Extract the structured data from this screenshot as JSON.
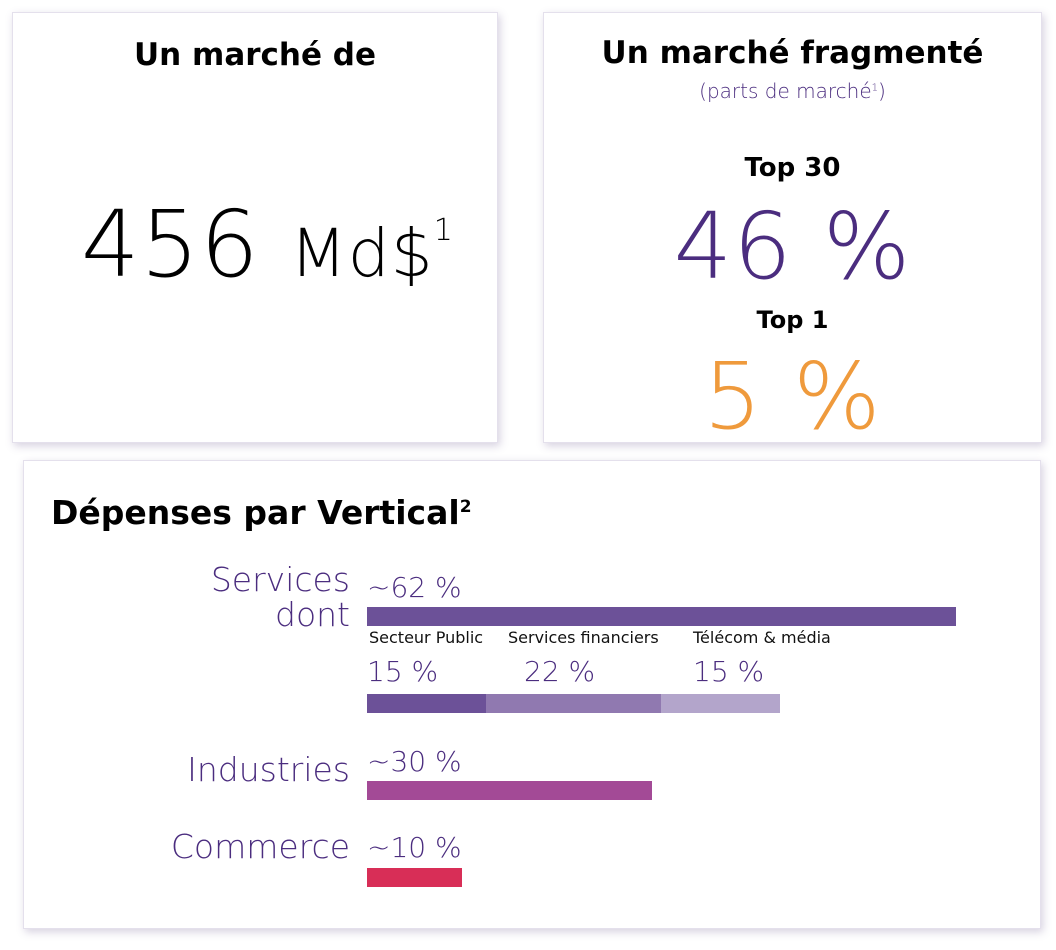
{
  "market_size": {
    "title": "Un marché de",
    "value": "456",
    "unit": "Md$",
    "footnote": "1"
  },
  "fragmented": {
    "title": "Un marché fragmenté",
    "subtitle": "(parts de marché",
    "subtitle_footnote": "1",
    "subtitle_close": ")",
    "top30_label": "Top 30",
    "top30_value": "46 %",
    "top1_label": "Top 1",
    "top1_value": "5 %"
  },
  "colors": {
    "purple_text": "#4b2d7f",
    "orange": "#ef9a3c"
  },
  "chart_data": {
    "type": "bar",
    "title": "Dépenses par Vertical",
    "title_footnote": "2",
    "categories": [
      "Services dont",
      "Industries",
      "Commerce"
    ],
    "category_lines": [
      [
        "Services",
        "dont"
      ],
      [
        "Industries"
      ],
      [
        "Commerce"
      ]
    ],
    "values": [
      62,
      30,
      10
    ],
    "value_labels": [
      "~62 %",
      "~30 %",
      "~10 %"
    ],
    "colors": [
      "#6c5198",
      "#a34a96",
      "#d82e57"
    ],
    "services_breakdown": [
      {
        "name": "Secteur Public",
        "value": 15,
        "label": "15 %",
        "color": "#6c5198"
      },
      {
        "name": "Services financiers",
        "value": 22,
        "label": "22 %",
        "color": "#9079b0"
      },
      {
        "name": "Télécom & média",
        "value": 15,
        "label": "15 %",
        "color": "#b3a5cb"
      }
    ]
  }
}
